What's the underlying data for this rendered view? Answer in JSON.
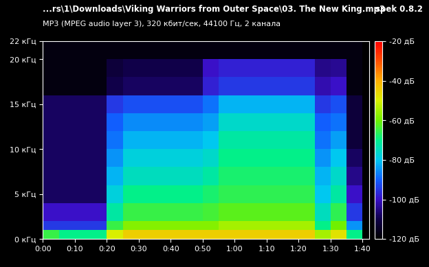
{
  "chart_data": {
    "type": "heatmap",
    "title": "...rs\\1\\Downloads\\Viking Warriors from Outer Space\\03. The New King.mp3",
    "subtitle": "MP3 (MPEG audio layer 3), 320 кбит/сек, 44100 Гц, 2 канала",
    "annotations": [
      "spek 0.8.2"
    ],
    "xlim": [
      0,
      102
    ],
    "xticks": [
      {
        "value": 0,
        "label": "0:00"
      },
      {
        "value": 10,
        "label": "0:10"
      },
      {
        "value": 20,
        "label": "0:20"
      },
      {
        "value": 30,
        "label": "0:30"
      },
      {
        "value": 40,
        "label": "0:40"
      },
      {
        "value": 50,
        "label": "0:50"
      },
      {
        "value": 60,
        "label": "1:00"
      },
      {
        "value": 70,
        "label": "1:10"
      },
      {
        "value": 80,
        "label": "1:20"
      },
      {
        "value": 90,
        "label": "1:30"
      },
      {
        "value": 100,
        "label": "1:40"
      }
    ],
    "ylim": [
      0,
      22
    ],
    "yticks": [
      {
        "value": 0,
        "label": "0 кГц"
      },
      {
        "value": 5,
        "label": "5 кГц"
      },
      {
        "value": 10,
        "label": "10 кГц"
      },
      {
        "value": 15,
        "label": "15 кГц"
      },
      {
        "value": 20,
        "label": "20 кГц"
      },
      {
        "value": 22,
        "label": "22 кГц"
      }
    ],
    "time_edges": [
      0,
      5,
      10,
      15,
      20,
      25,
      30,
      35,
      40,
      45,
      50,
      55,
      60,
      65,
      70,
      75,
      80,
      85,
      90,
      95,
      100
    ],
    "freq_edges": [
      0,
      1,
      2,
      4,
      6,
      8,
      10,
      12,
      14,
      16,
      18,
      20,
      22
    ],
    "cells": [
      [
        -65,
        -70,
        -70,
        -70,
        -50,
        -45,
        -45,
        -45,
        -45,
        -45,
        -45,
        -45,
        -45,
        -45,
        -45,
        -45,
        -45,
        -55,
        -48,
        -70
      ],
      [
        -95,
        -95,
        -95,
        -95,
        -65,
        -58,
        -58,
        -58,
        -58,
        -58,
        -58,
        -55,
        -55,
        -55,
        -55,
        -55,
        -55,
        -70,
        -60,
        -85
      ],
      [
        -100,
        -100,
        -100,
        -100,
        -72,
        -65,
        -65,
        -65,
        -65,
        -65,
        -64,
        -62,
        -62,
        -62,
        -62,
        -62,
        -62,
        -75,
        -66,
        -95
      ],
      [
        -108,
        -108,
        -108,
        -108,
        -78,
        -70,
        -70,
        -70,
        -70,
        -70,
        -68,
        -66,
        -66,
        -66,
        -66,
        -66,
        -66,
        -80,
        -72,
        -100
      ],
      [
        -108,
        -108,
        -108,
        -108,
        -82,
        -75,
        -75,
        -75,
        -75,
        -75,
        -72,
        -68,
        -68,
        -68,
        -68,
        -68,
        -68,
        -82,
        -76,
        -105
      ],
      [
        -108,
        -108,
        -108,
        -108,
        -85,
        -78,
        -78,
        -78,
        -78,
        -78,
        -76,
        -70,
        -70,
        -70,
        -70,
        -70,
        -70,
        -85,
        -80,
        -108
      ],
      [
        -108,
        -108,
        -108,
        -108,
        -88,
        -82,
        -82,
        -82,
        -82,
        -82,
        -80,
        -72,
        -72,
        -72,
        -72,
        -72,
        -72,
        -88,
        -84,
        -112
      ],
      [
        -108,
        -108,
        -108,
        -108,
        -90,
        -86,
        -86,
        -86,
        -86,
        -86,
        -84,
        -76,
        -76,
        -76,
        -76,
        -76,
        -76,
        -90,
        -88,
        -112
      ],
      [
        -108,
        -108,
        -108,
        -108,
        -95,
        -92,
        -92,
        -92,
        -92,
        -92,
        -88,
        -82,
        -82,
        -82,
        -82,
        -82,
        -82,
        -95,
        -92,
        -112
      ],
      [
        -118,
        -118,
        -118,
        -118,
        -110,
        -108,
        -108,
        -108,
        -108,
        -108,
        -98,
        -95,
        -95,
        -95,
        -95,
        -95,
        -95,
        -102,
        -100,
        -118
      ],
      [
        -118,
        -118,
        -118,
        -118,
        -112,
        -110,
        -110,
        -110,
        -110,
        -110,
        -100,
        -98,
        -98,
        -98,
        -98,
        -98,
        -98,
        -105,
        -104,
        -118
      ],
      [
        -118,
        -118,
        -118,
        -118,
        -118,
        -118,
        -118,
        -118,
        -118,
        -118,
        -118,
        -118,
        -118,
        -118,
        -118,
        -118,
        -118,
        -118,
        -118,
        -118
      ]
    ],
    "color_range": [
      -120,
      -20
    ],
    "color_ticks": [
      {
        "value": -20,
        "label": "-20 дБ"
      },
      {
        "value": -40,
        "label": "-40 дБ"
      },
      {
        "value": -60,
        "label": "-60 дБ"
      },
      {
        "value": -80,
        "label": "-80 дБ"
      },
      {
        "value": -100,
        "label": "-100 дБ"
      },
      {
        "value": -120,
        "label": "-120 дБ"
      }
    ]
  }
}
